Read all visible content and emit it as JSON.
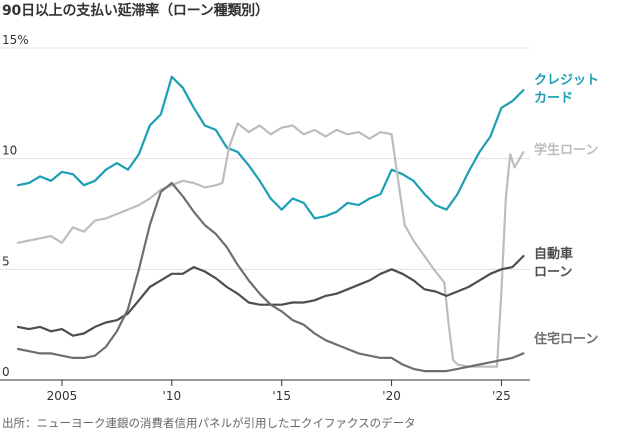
{
  "title": "90日以上の支払い延滞率（ローン種類別）",
  "source": "出所：ニューヨーク連銀の消費者信用パネルが引用したエクイファクスのデータ",
  "chart_data": {
    "type": "line",
    "title": "90日以上の支払い延滞率（ローン種類別）",
    "ylim": [
      0,
      15
    ],
    "xlim": [
      2003,
      2026.3
    ],
    "y_ticks": [
      {
        "value": 0,
        "label": "0"
      },
      {
        "value": 5,
        "label": "5"
      },
      {
        "value": 10,
        "label": "10"
      },
      {
        "value": 15,
        "label": "15%"
      }
    ],
    "x_ticks": [
      {
        "value": 2005,
        "label": "2005"
      },
      {
        "value": 2010,
        "label": "'10"
      },
      {
        "value": 2015,
        "label": "'15"
      },
      {
        "value": 2020,
        "label": "'20"
      },
      {
        "value": 2025,
        "label": "'25"
      }
    ],
    "grid": true,
    "series": [
      {
        "name": "クレジットカード",
        "label_lines": [
          "クレジット",
          "カード"
        ],
        "color": "#1a9fb3",
        "width": 2.2,
        "points": [
          [
            2003,
            8.8
          ],
          [
            2003.5,
            8.9
          ],
          [
            2004,
            9.2
          ],
          [
            2004.5,
            9.0
          ],
          [
            2005,
            9.4
          ],
          [
            2005.5,
            9.3
          ],
          [
            2006,
            8.8
          ],
          [
            2006.5,
            9.0
          ],
          [
            2007,
            9.5
          ],
          [
            2007.5,
            9.8
          ],
          [
            2008,
            9.5
          ],
          [
            2008.5,
            10.2
          ],
          [
            2009,
            11.5
          ],
          [
            2009.5,
            12.0
          ],
          [
            2010,
            13.7
          ],
          [
            2010.5,
            13.2
          ],
          [
            2011,
            12.3
          ],
          [
            2011.5,
            11.5
          ],
          [
            2012,
            11.3
          ],
          [
            2012.5,
            10.5
          ],
          [
            2013,
            10.3
          ],
          [
            2013.5,
            9.7
          ],
          [
            2014,
            9.0
          ],
          [
            2014.5,
            8.2
          ],
          [
            2015,
            7.7
          ],
          [
            2015.5,
            8.2
          ],
          [
            2016,
            8.0
          ],
          [
            2016.5,
            7.3
          ],
          [
            2017,
            7.4
          ],
          [
            2017.5,
            7.6
          ],
          [
            2018,
            8.0
          ],
          [
            2018.5,
            7.9
          ],
          [
            2019,
            8.2
          ],
          [
            2019.5,
            8.4
          ],
          [
            2020,
            9.5
          ],
          [
            2020.5,
            9.3
          ],
          [
            2021,
            9.0
          ],
          [
            2021.5,
            8.4
          ],
          [
            2022,
            7.9
          ],
          [
            2022.5,
            7.7
          ],
          [
            2023,
            8.4
          ],
          [
            2023.5,
            9.4
          ],
          [
            2024,
            10.3
          ],
          [
            2024.5,
            11.0
          ],
          [
            2025,
            12.3
          ],
          [
            2025.5,
            12.6
          ],
          [
            2026,
            13.1
          ]
        ]
      },
      {
        "name": "学生ローン",
        "label_lines": [
          "学生ローン"
        ],
        "color": "#bdbdbd",
        "width": 2.2,
        "points": [
          [
            2003,
            6.2
          ],
          [
            2003.5,
            6.3
          ],
          [
            2004,
            6.4
          ],
          [
            2004.5,
            6.5
          ],
          [
            2005,
            6.2
          ],
          [
            2005.5,
            6.9
          ],
          [
            2006,
            6.7
          ],
          [
            2006.5,
            7.2
          ],
          [
            2007,
            7.3
          ],
          [
            2007.5,
            7.5
          ],
          [
            2008,
            7.7
          ],
          [
            2008.5,
            7.9
          ],
          [
            2009,
            8.2
          ],
          [
            2009.5,
            8.6
          ],
          [
            2010,
            8.8
          ],
          [
            2010.5,
            9.0
          ],
          [
            2011,
            8.9
          ],
          [
            2011.5,
            8.7
          ],
          [
            2012,
            8.8
          ],
          [
            2012.3,
            8.9
          ],
          [
            2012.6,
            10.5
          ],
          [
            2013,
            11.6
          ],
          [
            2013.5,
            11.2
          ],
          [
            2014,
            11.5
          ],
          [
            2014.5,
            11.1
          ],
          [
            2015,
            11.4
          ],
          [
            2015.5,
            11.5
          ],
          [
            2016,
            11.1
          ],
          [
            2016.5,
            11.3
          ],
          [
            2017,
            11.0
          ],
          [
            2017.5,
            11.3
          ],
          [
            2018,
            11.1
          ],
          [
            2018.5,
            11.2
          ],
          [
            2019,
            10.9
          ],
          [
            2019.5,
            11.2
          ],
          [
            2020,
            11.1
          ],
          [
            2020.3,
            9.0
          ],
          [
            2020.6,
            7.0
          ],
          [
            2021,
            6.3
          ],
          [
            2021.5,
            5.6
          ],
          [
            2022,
            4.9
          ],
          [
            2022.4,
            4.4
          ],
          [
            2022.6,
            2.5
          ],
          [
            2022.8,
            0.9
          ],
          [
            2023,
            0.7
          ],
          [
            2023.5,
            0.6
          ],
          [
            2024,
            0.6
          ],
          [
            2024.5,
            0.6
          ],
          [
            2024.8,
            0.6
          ],
          [
            2025.0,
            4.0
          ],
          [
            2025.2,
            8.2
          ],
          [
            2025.4,
            10.2
          ],
          [
            2025.6,
            9.6
          ],
          [
            2026,
            10.3
          ]
        ]
      },
      {
        "name": "自動車ローン",
        "label_lines": [
          "自動車",
          "ローン"
        ],
        "color": "#4d4d4d",
        "width": 2.2,
        "points": [
          [
            2003,
            2.4
          ],
          [
            2003.5,
            2.3
          ],
          [
            2004,
            2.4
          ],
          [
            2004.5,
            2.2
          ],
          [
            2005,
            2.3
          ],
          [
            2005.5,
            2.0
          ],
          [
            2006,
            2.1
          ],
          [
            2006.5,
            2.4
          ],
          [
            2007,
            2.6
          ],
          [
            2007.5,
            2.7
          ],
          [
            2008,
            3.0
          ],
          [
            2008.5,
            3.6
          ],
          [
            2009,
            4.2
          ],
          [
            2009.5,
            4.5
          ],
          [
            2010,
            4.8
          ],
          [
            2010.5,
            4.8
          ],
          [
            2011,
            5.1
          ],
          [
            2011.5,
            4.9
          ],
          [
            2012,
            4.6
          ],
          [
            2012.5,
            4.2
          ],
          [
            2013,
            3.9
          ],
          [
            2013.5,
            3.5
          ],
          [
            2014,
            3.4
          ],
          [
            2014.5,
            3.4
          ],
          [
            2015,
            3.4
          ],
          [
            2015.5,
            3.5
          ],
          [
            2016,
            3.5
          ],
          [
            2016.5,
            3.6
          ],
          [
            2017,
            3.8
          ],
          [
            2017.5,
            3.9
          ],
          [
            2018,
            4.1
          ],
          [
            2018.5,
            4.3
          ],
          [
            2019,
            4.5
          ],
          [
            2019.5,
            4.8
          ],
          [
            2020,
            5.0
          ],
          [
            2020.5,
            4.8
          ],
          [
            2021,
            4.5
          ],
          [
            2021.5,
            4.1
          ],
          [
            2022,
            4.0
          ],
          [
            2022.5,
            3.8
          ],
          [
            2023,
            4.0
          ],
          [
            2023.5,
            4.2
          ],
          [
            2024,
            4.5
          ],
          [
            2024.5,
            4.8
          ],
          [
            2025,
            5.0
          ],
          [
            2025.5,
            5.1
          ],
          [
            2026,
            5.6
          ]
        ]
      },
      {
        "name": "住宅ローン",
        "label_lines": [
          "住宅ローン"
        ],
        "color": "#6e6e6e",
        "width": 2.2,
        "points": [
          [
            2003,
            1.4
          ],
          [
            2003.5,
            1.3
          ],
          [
            2004,
            1.2
          ],
          [
            2004.5,
            1.2
          ],
          [
            2005,
            1.1
          ],
          [
            2005.5,
            1.0
          ],
          [
            2006,
            1.0
          ],
          [
            2006.5,
            1.1
          ],
          [
            2007,
            1.5
          ],
          [
            2007.5,
            2.2
          ],
          [
            2008,
            3.2
          ],
          [
            2008.5,
            5.0
          ],
          [
            2009,
            7.0
          ],
          [
            2009.5,
            8.5
          ],
          [
            2010,
            8.9
          ],
          [
            2010.5,
            8.3
          ],
          [
            2011,
            7.6
          ],
          [
            2011.5,
            7.0
          ],
          [
            2012,
            6.6
          ],
          [
            2012.5,
            6.0
          ],
          [
            2013,
            5.2
          ],
          [
            2013.5,
            4.5
          ],
          [
            2014,
            3.9
          ],
          [
            2014.5,
            3.4
          ],
          [
            2015,
            3.1
          ],
          [
            2015.5,
            2.7
          ],
          [
            2016,
            2.5
          ],
          [
            2016.5,
            2.1
          ],
          [
            2017,
            1.8
          ],
          [
            2017.5,
            1.6
          ],
          [
            2018,
            1.4
          ],
          [
            2018.5,
            1.2
          ],
          [
            2019,
            1.1
          ],
          [
            2019.5,
            1.0
          ],
          [
            2020,
            1.0
          ],
          [
            2020.5,
            0.7
          ],
          [
            2021,
            0.5
          ],
          [
            2021.5,
            0.4
          ],
          [
            2022,
            0.4
          ],
          [
            2022.5,
            0.4
          ],
          [
            2023,
            0.5
          ],
          [
            2023.5,
            0.6
          ],
          [
            2024,
            0.7
          ],
          [
            2024.5,
            0.8
          ],
          [
            2025,
            0.9
          ],
          [
            2025.5,
            1.0
          ],
          [
            2026,
            1.2
          ]
        ]
      }
    ]
  }
}
